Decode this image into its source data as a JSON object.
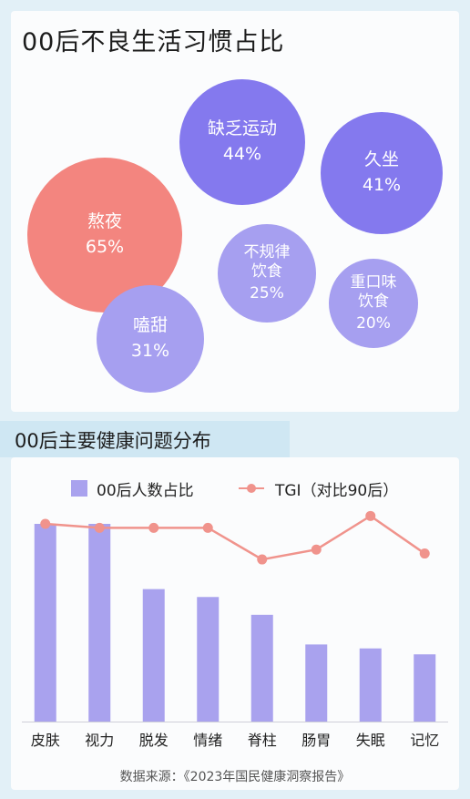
{
  "title": "00后不良生活习惯占比",
  "bubbles": [
    {
      "label": "熬夜",
      "value": "65%",
      "color": "#f3857f"
    },
    {
      "label": "缺乏运动",
      "value": "44%",
      "color": "#8479ee"
    },
    {
      "label": "久坐",
      "value": "41%",
      "color": "#8479ee"
    },
    {
      "label": "不规律\n饮食",
      "value": "25%",
      "color": "#a69ff0"
    },
    {
      "label": "重口味\n饮食",
      "value": "20%",
      "color": "#a69ff0"
    },
    {
      "label": "嗑甜",
      "value": "31%",
      "color": "#a69ff0"
    }
  ],
  "section2_title": "00后主要健康问题分布",
  "chart_data": {
    "type": "bar",
    "categories": [
      "皮肤",
      "视力",
      "脱发",
      "情绪",
      "脊柱",
      "肠胃",
      "失眠",
      "记忆"
    ],
    "series": [
      {
        "name": "00后人数占比",
        "type": "bar",
        "values": [
          100,
          100,
          67,
          63,
          54,
          39,
          37,
          34
        ]
      },
      {
        "name": "TGI（对比90后）",
        "type": "line",
        "values": [
          100,
          98,
          98,
          98,
          82,
          87,
          104,
          85
        ]
      }
    ],
    "ylim": [
      0,
      110
    ],
    "colors": {
      "bar": "#a9a2ee",
      "line": "#f0938c"
    },
    "legend": "top"
  },
  "source": "数据来源：《2023年国民健康洞察报告》"
}
